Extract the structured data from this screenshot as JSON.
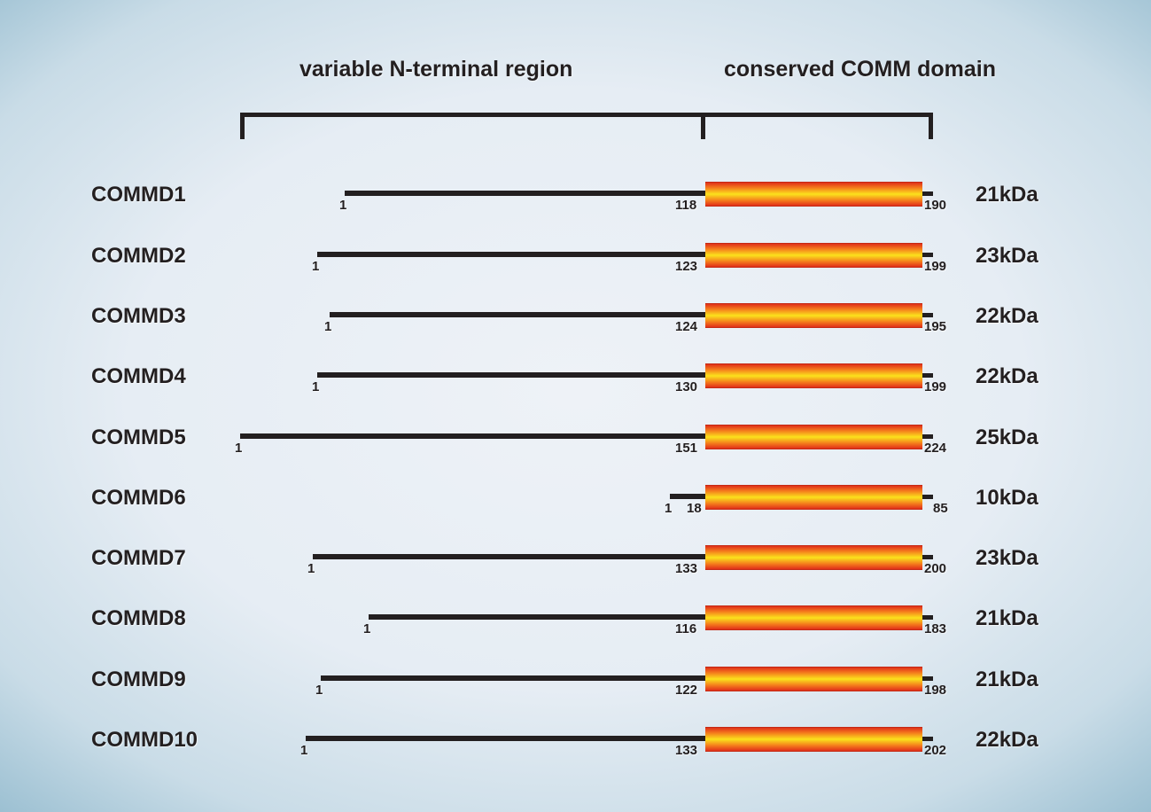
{
  "headers": {
    "variable": "variable N-terminal region",
    "conserved": "conserved COMM domain"
  },
  "colors": {
    "domain_fill_outer": "#e0301a",
    "domain_fill_mid": "#f47a1c",
    "domain_fill_center": "#fbe21c",
    "line": "#231f20"
  },
  "proteins": [
    {
      "name": "COMMD1",
      "start": "1",
      "domain_start": "118",
      "end": "190",
      "mass": "21kDa"
    },
    {
      "name": "COMMD2",
      "start": "1",
      "domain_start": "123",
      "end": "199",
      "mass": "23kDa"
    },
    {
      "name": "COMMD3",
      "start": "1",
      "domain_start": "124",
      "end": "195",
      "mass": "22kDa"
    },
    {
      "name": "COMMD4",
      "start": "1",
      "domain_start": "130",
      "end": "199",
      "mass": "22kDa"
    },
    {
      "name": "COMMD5",
      "start": "1",
      "domain_start": "151",
      "end": "224",
      "mass": "25kDa"
    },
    {
      "name": "COMMD6",
      "start": "1",
      "domain_start": "18",
      "end": "85",
      "mass": "10kDa"
    },
    {
      "name": "COMMD7",
      "start": "1",
      "domain_start": "133",
      "end": "200",
      "mass": "23kDa"
    },
    {
      "name": "COMMD8",
      "start": "1",
      "domain_start": "116",
      "end": "183",
      "mass": "21kDa"
    },
    {
      "name": "COMMD9",
      "start": "1",
      "domain_start": "122",
      "end": "198",
      "mass": "21kDa"
    },
    {
      "name": "COMMD10",
      "start": "1",
      "domain_start": "133",
      "end": "202",
      "mass": "22kDa"
    }
  ]
}
